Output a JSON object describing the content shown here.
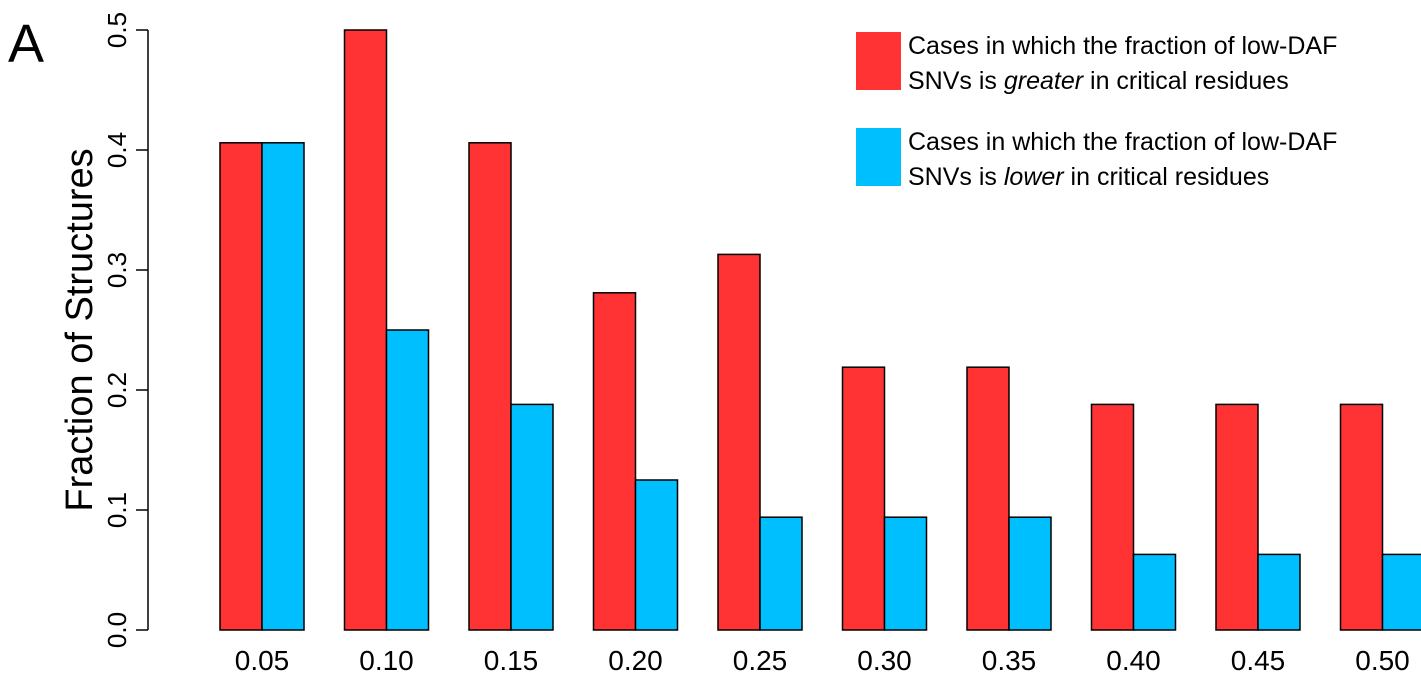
{
  "panel_label": "A",
  "legend": {
    "placement": "top-right",
    "entries": [
      {
        "series_index": 0,
        "line1": "Cases in which the fraction of low-DAF",
        "line2_prefix": "SNVs is ",
        "line2_emphasis": "greater",
        "line2_suffix": " in critical residues"
      },
      {
        "series_index": 1,
        "line1": "Cases in which the fraction of low-DAF",
        "line2_prefix": "SNVs is ",
        "line2_emphasis": "lower",
        "line2_suffix": " in critical residues"
      }
    ]
  },
  "chart_data": {
    "type": "bar",
    "title": "",
    "xlabel": "",
    "ylabel": "Fraction of Structures",
    "categories": [
      "0.05",
      "0.10",
      "0.15",
      "0.20",
      "0.25",
      "0.30",
      "0.35",
      "0.40",
      "0.45",
      "0.50"
    ],
    "ylim": [
      0,
      0.5
    ],
    "yticks": [
      "0.0",
      "0.1",
      "0.2",
      "0.3",
      "0.4",
      "0.5"
    ],
    "grid": false,
    "series": [
      {
        "color": "#ff3333",
        "values": [
          0.406,
          0.5,
          0.406,
          0.281,
          0.313,
          0.219,
          0.219,
          0.188,
          0.188,
          0.188
        ]
      },
      {
        "color": "#00bfff",
        "values": [
          0.406,
          0.25,
          0.188,
          0.125,
          0.094,
          0.094,
          0.094,
          0.063,
          0.063,
          0.063
        ]
      }
    ]
  }
}
